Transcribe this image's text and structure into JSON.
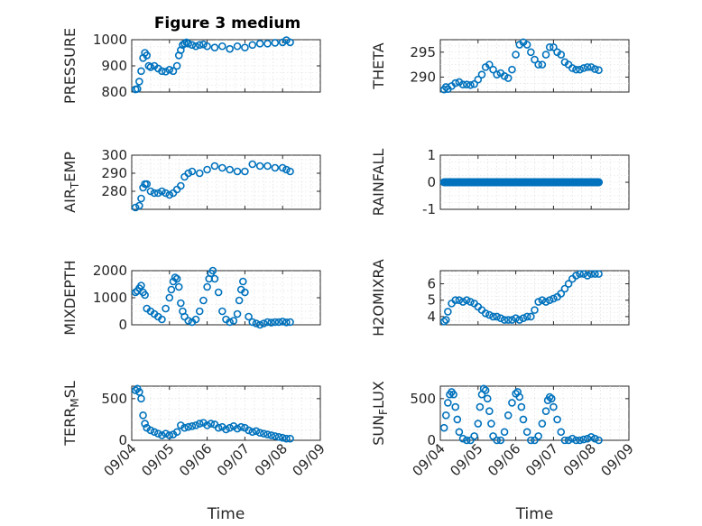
{
  "title": "Figure 3 medium",
  "x_axis": {
    "label": "Time",
    "ticks": [
      {
        "t": 0,
        "label": "09/04"
      },
      {
        "t": 1,
        "label": "09/05"
      },
      {
        "t": 2,
        "label": "09/06"
      },
      {
        "t": 3,
        "label": "09/07"
      },
      {
        "t": 4,
        "label": "09/08"
      },
      {
        "t": 5,
        "label": "09/09"
      }
    ],
    "range": [
      0,
      5
    ]
  },
  "series_color": "#0072BD",
  "chart_data": [
    {
      "type": "scatter",
      "ylabel": "PRESSURE",
      "ylim": [
        800,
        1000
      ],
      "yticks": [
        800,
        900,
        1000
      ],
      "x": [
        0.1,
        0.15,
        0.2,
        0.25,
        0.3,
        0.35,
        0.4,
        0.45,
        0.5,
        0.6,
        0.7,
        0.8,
        0.9,
        1.0,
        1.1,
        1.2,
        1.25,
        1.3,
        1.35,
        1.4,
        1.45,
        1.5,
        1.6,
        1.7,
        1.8,
        1.9,
        2.0,
        2.2,
        2.4,
        2.6,
        2.8,
        3.0,
        3.2,
        3.4,
        3.6,
        3.8,
        4.0,
        4.1,
        4.2
      ],
      "values": [
        810,
        812,
        840,
        880,
        930,
        950,
        940,
        900,
        895,
        900,
        890,
        880,
        878,
        885,
        880,
        900,
        940,
        960,
        980,
        985,
        990,
        985,
        980,
        975,
        980,
        982,
        975,
        970,
        975,
        965,
        975,
        970,
        980,
        985,
        985,
        988,
        990,
        998,
        990
      ]
    },
    {
      "type": "scatter",
      "ylabel": "THETA",
      "ylim": [
        287,
        297.5
      ],
      "yticks": [
        290,
        295
      ],
      "x": [
        0.1,
        0.15,
        0.2,
        0.3,
        0.4,
        0.5,
        0.6,
        0.7,
        0.8,
        0.9,
        1.0,
        1.1,
        1.2,
        1.3,
        1.4,
        1.5,
        1.6,
        1.7,
        1.8,
        1.9,
        2.0,
        2.1,
        2.2,
        2.3,
        2.4,
        2.5,
        2.6,
        2.7,
        2.8,
        2.9,
        3.0,
        3.1,
        3.2,
        3.3,
        3.4,
        3.5,
        3.6,
        3.7,
        3.8,
        3.9,
        4.0,
        4.1,
        4.2
      ],
      "values": [
        287.5,
        288.0,
        287.6,
        288.2,
        288.8,
        289.0,
        288.5,
        288.5,
        288.4,
        288.6,
        289.5,
        290.5,
        292.0,
        292.5,
        291.5,
        290.5,
        290.8,
        290.2,
        289.8,
        291.5,
        294.5,
        296.5,
        297.0,
        296.5,
        295.0,
        293.5,
        292.5,
        292.5,
        294.5,
        296.0,
        296.0,
        295.0,
        294.5,
        293.0,
        292.5,
        291.8,
        291.5,
        291.5,
        291.8,
        292.0,
        292.0,
        291.6,
        291.4
      ]
    },
    {
      "type": "scatter",
      "ylabel": "AIR_TEMP",
      "ylim": [
        270,
        300
      ],
      "yticks": [
        280,
        290,
        300
      ],
      "x": [
        0.1,
        0.2,
        0.25,
        0.3,
        0.35,
        0.4,
        0.5,
        0.6,
        0.7,
        0.8,
        0.9,
        1.0,
        1.1,
        1.2,
        1.3,
        1.4,
        1.5,
        1.6,
        1.8,
        2.0,
        2.2,
        2.4,
        2.6,
        2.8,
        3.0,
        3.2,
        3.4,
        3.6,
        3.8,
        4.0,
        4.1,
        4.2
      ],
      "values": [
        271,
        272,
        276,
        282,
        284,
        284,
        280,
        279,
        279,
        280,
        279,
        278,
        279,
        281,
        283,
        288,
        290,
        291,
        290,
        292,
        294,
        293,
        292,
        291,
        291,
        295,
        294,
        294,
        293,
        293,
        292,
        291
      ]
    },
    {
      "type": "scatter",
      "ylabel": "RAINFALL",
      "ylim": [
        -1,
        1
      ],
      "yticks": [
        -1,
        0,
        1
      ],
      "x": [
        0.1,
        0.3,
        0.5,
        0.7,
        0.9,
        1.1,
        1.3,
        1.5,
        1.7,
        1.9,
        2.1,
        2.3,
        2.5,
        2.7,
        2.9,
        3.1,
        3.3,
        3.5,
        3.7,
        3.9,
        4.1,
        4.2
      ],
      "values": [
        0,
        0,
        0,
        0,
        0,
        0,
        0,
        0,
        0,
        0,
        0,
        0,
        0,
        0,
        0,
        0,
        0,
        0,
        0,
        0,
        0,
        0
      ]
    },
    {
      "type": "scatter",
      "ylabel": "MIXDEPTH",
      "ylim": [
        0,
        2000
      ],
      "yticks": [
        0,
        1000,
        2000
      ],
      "x": [
        0.1,
        0.15,
        0.2,
        0.25,
        0.3,
        0.35,
        0.4,
        0.5,
        0.6,
        0.7,
        0.8,
        0.9,
        1.0,
        1.05,
        1.1,
        1.15,
        1.2,
        1.25,
        1.3,
        1.35,
        1.4,
        1.5,
        1.6,
        1.7,
        1.8,
        1.9,
        2.0,
        2.05,
        2.1,
        2.15,
        2.2,
        2.3,
        2.4,
        2.5,
        2.6,
        2.7,
        2.8,
        2.85,
        2.9,
        2.95,
        3.0,
        3.1,
        3.2,
        3.3,
        3.4,
        3.5,
        3.6,
        3.7,
        3.8,
        3.9,
        4.0,
        4.1,
        4.2
      ],
      "values": [
        1200,
        1250,
        1350,
        1450,
        1200,
        1100,
        600,
        500,
        400,
        300,
        200,
        600,
        1000,
        1300,
        1600,
        1750,
        1700,
        1400,
        800,
        500,
        300,
        150,
        100,
        200,
        500,
        900,
        1400,
        1700,
        1900,
        2000,
        1700,
        1200,
        500,
        200,
        100,
        150,
        400,
        900,
        1300,
        1600,
        1200,
        300,
        100,
        50,
        0,
        50,
        100,
        80,
        100,
        100,
        120,
        90,
        100
      ]
    },
    {
      "type": "scatter",
      "ylabel": "H2OMIXRA",
      "ylim": [
        3.5,
        6.8
      ],
      "yticks": [
        4,
        5,
        6
      ],
      "x": [
        0.1,
        0.15,
        0.2,
        0.3,
        0.4,
        0.5,
        0.6,
        0.7,
        0.8,
        0.9,
        1.0,
        1.1,
        1.2,
        1.3,
        1.4,
        1.5,
        1.6,
        1.7,
        1.8,
        1.9,
        2.0,
        2.1,
        2.2,
        2.3,
        2.4,
        2.5,
        2.6,
        2.7,
        2.8,
        2.9,
        3.0,
        3.1,
        3.2,
        3.3,
        3.4,
        3.5,
        3.6,
        3.7,
        3.8,
        3.9,
        4.0,
        4.1,
        4.2
      ],
      "values": [
        3.7,
        3.8,
        4.3,
        4.8,
        5.0,
        5.0,
        4.9,
        5.0,
        4.9,
        4.8,
        4.6,
        4.4,
        4.2,
        4.1,
        4.0,
        4.0,
        3.9,
        3.8,
        3.8,
        3.8,
        3.9,
        3.8,
        3.9,
        4.0,
        4.0,
        4.4,
        4.9,
        5.0,
        4.9,
        5.0,
        5.1,
        5.2,
        5.4,
        5.7,
        6.0,
        6.3,
        6.5,
        6.6,
        6.6,
        6.5,
        6.6,
        6.6,
        6.6
      ]
    },
    {
      "type": "scatter",
      "ylabel": "TERR_MSL",
      "ylim": [
        0,
        650
      ],
      "yticks": [
        0,
        500
      ],
      "x": [
        0.1,
        0.15,
        0.2,
        0.25,
        0.3,
        0.35,
        0.4,
        0.5,
        0.6,
        0.7,
        0.8,
        0.9,
        1.0,
        1.1,
        1.2,
        1.3,
        1.4,
        1.5,
        1.6,
        1.7,
        1.8,
        1.9,
        2.0,
        2.1,
        2.2,
        2.3,
        2.4,
        2.5,
        2.6,
        2.7,
        2.8,
        2.9,
        3.0,
        3.1,
        3.2,
        3.3,
        3.4,
        3.5,
        3.6,
        3.7,
        3.8,
        3.9,
        4.0,
        4.1,
        4.2
      ],
      "values": [
        600,
        620,
        580,
        500,
        300,
        200,
        150,
        120,
        100,
        80,
        60,
        80,
        60,
        70,
        100,
        180,
        150,
        160,
        170,
        180,
        200,
        210,
        180,
        200,
        190,
        150,
        160,
        130,
        150,
        170,
        140,
        160,
        150,
        120,
        100,
        110,
        90,
        80,
        70,
        60,
        50,
        40,
        30,
        20,
        20
      ]
    },
    {
      "type": "scatter",
      "ylabel": "SUN_FLUX",
      "ylim": [
        0,
        650
      ],
      "yticks": [
        0,
        500
      ],
      "x": [
        0.1,
        0.15,
        0.2,
        0.25,
        0.3,
        0.35,
        0.4,
        0.45,
        0.5,
        0.6,
        0.7,
        0.8,
        0.9,
        1.0,
        1.05,
        1.1,
        1.15,
        1.2,
        1.25,
        1.3,
        1.35,
        1.4,
        1.5,
        1.6,
        1.7,
        1.8,
        1.9,
        2.0,
        2.05,
        2.1,
        2.15,
        2.2,
        2.3,
        2.4,
        2.5,
        2.6,
        2.7,
        2.8,
        2.85,
        2.9,
        2.95,
        3.0,
        3.1,
        3.2,
        3.3,
        3.4,
        3.5,
        3.6,
        3.7,
        3.8,
        3.9,
        4.0,
        4.1,
        4.2
      ],
      "values": [
        150,
        300,
        450,
        550,
        580,
        550,
        400,
        250,
        100,
        20,
        0,
        0,
        50,
        200,
        400,
        550,
        620,
        600,
        500,
        350,
        200,
        50,
        0,
        0,
        100,
        300,
        450,
        560,
        580,
        520,
        400,
        250,
        100,
        0,
        0,
        50,
        200,
        350,
        480,
        520,
        500,
        400,
        250,
        100,
        0,
        0,
        20,
        0,
        0,
        10,
        20,
        40,
        20,
        0
      ]
    }
  ]
}
